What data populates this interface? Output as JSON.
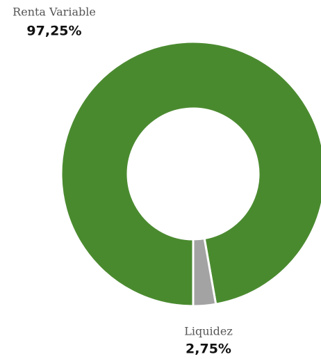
{
  "chart_data": {
    "type": "donut",
    "categories": [
      "Renta Variable",
      "Liquidez"
    ],
    "values": [
      97.25,
      2.75
    ],
    "value_labels": [
      "97,25%",
      "2,75%"
    ],
    "colors": [
      "#4a8a2f",
      "#a3a3a3"
    ]
  }
}
